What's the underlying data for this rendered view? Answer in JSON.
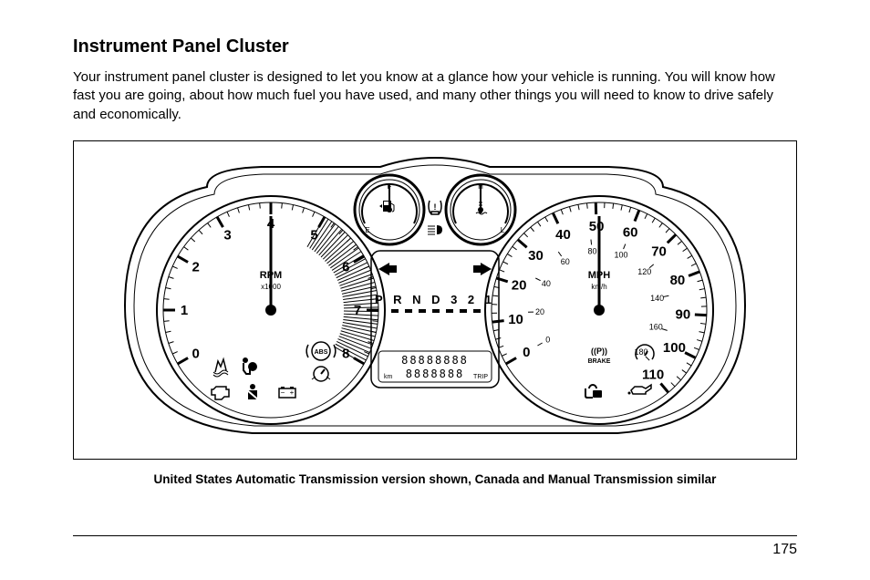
{
  "title": "Instrument Panel Cluster",
  "body": "Your instrument panel cluster is designed to let you know at a glance how your vehicle is running. You will know how fast you are going, about how much fuel you have used, and many other things you will need to know to drive safely and economically.",
  "caption": "United States Automatic Transmission version shown, Canada and Manual Transmission similar",
  "page_number": "175",
  "cluster": {
    "tachometer": {
      "label": "RPM",
      "sublabel": "x1000",
      "ticks": [
        "0",
        "1",
        "2",
        "3",
        "4",
        "5",
        "6",
        "7",
        "8"
      ],
      "redline_from_index": 5
    },
    "speedometer": {
      "unit_top": "MPH",
      "unit_bottom": "km/h",
      "mph_ticks": [
        "0",
        "10",
        "20",
        "30",
        "40",
        "50",
        "60",
        "70",
        "80",
        "90",
        "100",
        "110"
      ],
      "kmh_ticks": [
        "0",
        "20",
        "40",
        "60",
        "80",
        "100",
        "120",
        "140",
        "160",
        "180"
      ]
    },
    "fuel_gauge": {
      "labels": [
        "E",
        "F"
      ],
      "icon": "fuel-pump-icon"
    },
    "temp_gauge": {
      "labels": [
        "L",
        "H"
      ],
      "icon": "coolant-temp-icon"
    },
    "tpms_icon": "tire-pressure-icon",
    "turn_left_icon": "arrow-left-icon",
    "turn_right_icon": "arrow-right-icon",
    "highbeam_icon": "highbeam-icon",
    "gear_display": "P R N D 3 2 1",
    "odometer_placeholder": "88888888",
    "trip_placeholder": "8888888",
    "odo_unit_left": "km",
    "odo_unit_right": "TRIP",
    "warning_icons_left": [
      "abs-icon",
      "traction-control-icon",
      "airbag-icon",
      "cruise-icon",
      "check-engine-icon",
      "seatbelt-icon",
      "battery-icon"
    ],
    "warning_icons_right": [
      "parking-brake-label",
      "brake-icon",
      "security-lock-icon",
      "oil-icon"
    ],
    "brake_label": "BRAKE",
    "parking_brake_symbol": "((P))"
  }
}
